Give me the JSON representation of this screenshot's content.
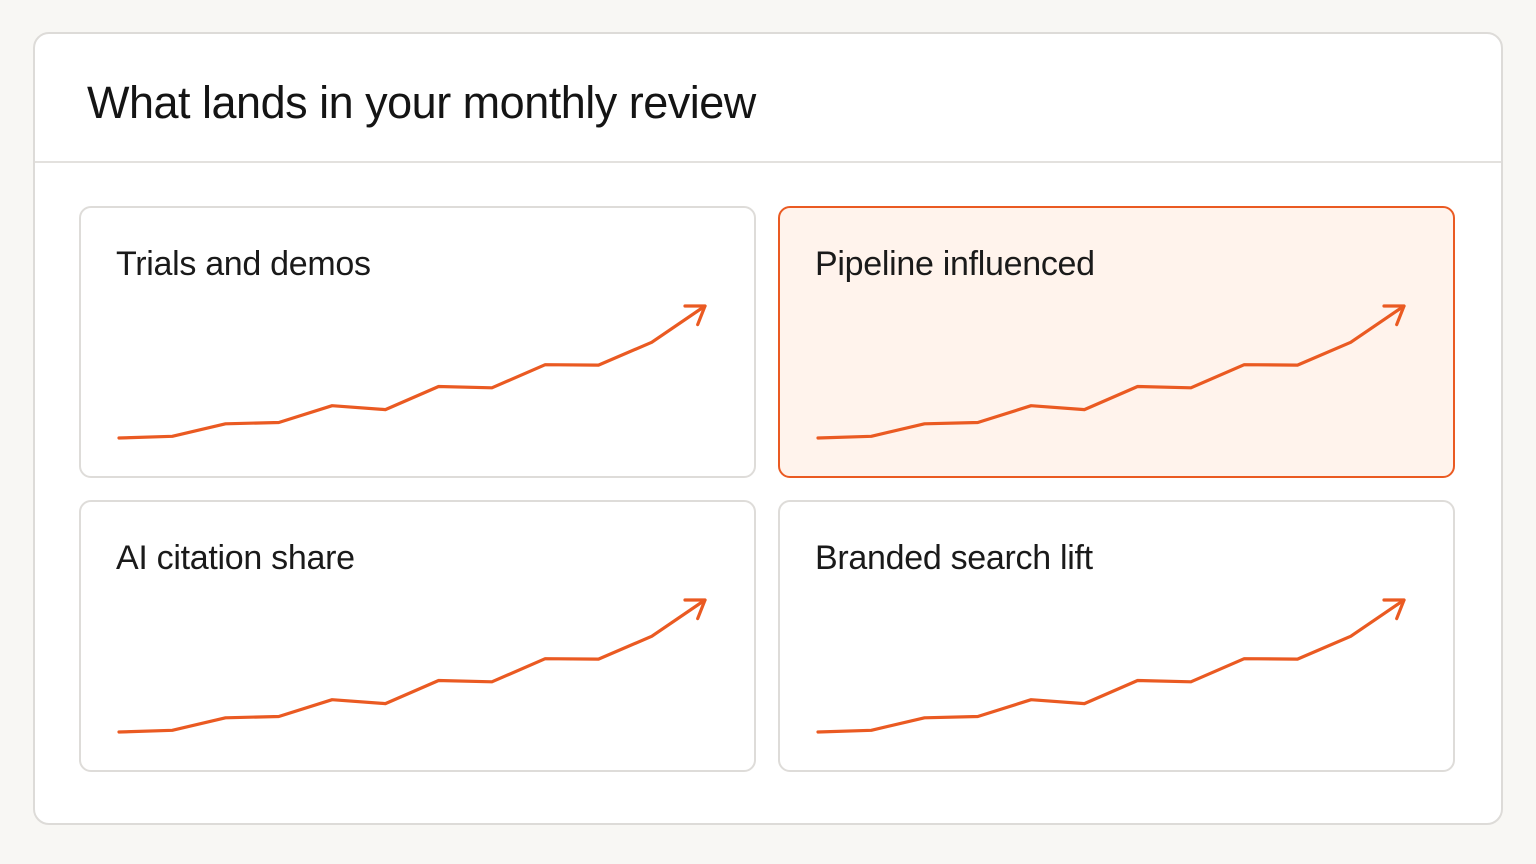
{
  "panel": {
    "title": "What lands in your monthly review"
  },
  "colors": {
    "accent": "#ea5a22",
    "highlight_bg": "#fff3ec",
    "border": "#dedcd9"
  },
  "chart_data": [
    {
      "type": "line",
      "title": "Trials and demos",
      "highlighted": false,
      "arrow_end": true,
      "axes_visible": false,
      "grid": false,
      "x": [
        0,
        1,
        2,
        3,
        4,
        5,
        6,
        7,
        8,
        9,
        10,
        11
      ],
      "y": [
        0,
        0.5,
        4.3,
        4.7,
        9.8,
        8.6,
        15.6,
        15.2,
        22.2,
        22.1,
        29.0,
        40.0
      ],
      "ylim": [
        0,
        40
      ]
    },
    {
      "type": "line",
      "title": "Pipeline influenced",
      "highlighted": true,
      "arrow_end": true,
      "axes_visible": false,
      "grid": false,
      "x": [
        0,
        1,
        2,
        3,
        4,
        5,
        6,
        7,
        8,
        9,
        10,
        11
      ],
      "y": [
        0,
        0.5,
        4.3,
        4.7,
        9.8,
        8.6,
        15.6,
        15.2,
        22.2,
        22.1,
        29.0,
        40.0
      ],
      "ylim": [
        0,
        40
      ]
    },
    {
      "type": "line",
      "title": "AI citation share",
      "highlighted": false,
      "arrow_end": true,
      "axes_visible": false,
      "grid": false,
      "x": [
        0,
        1,
        2,
        3,
        4,
        5,
        6,
        7,
        8,
        9,
        10,
        11
      ],
      "y": [
        0,
        0.5,
        4.3,
        4.7,
        9.8,
        8.6,
        15.6,
        15.2,
        22.2,
        22.1,
        29.0,
        40.0
      ],
      "ylim": [
        0,
        40
      ]
    },
    {
      "type": "line",
      "title": "Branded search lift",
      "highlighted": false,
      "arrow_end": true,
      "axes_visible": false,
      "grid": false,
      "x": [
        0,
        1,
        2,
        3,
        4,
        5,
        6,
        7,
        8,
        9,
        10,
        11
      ],
      "y": [
        0,
        0.5,
        4.3,
        4.7,
        9.8,
        8.6,
        15.6,
        15.2,
        22.2,
        22.1,
        29.0,
        40.0
      ],
      "ylim": [
        0,
        40
      ]
    }
  ]
}
